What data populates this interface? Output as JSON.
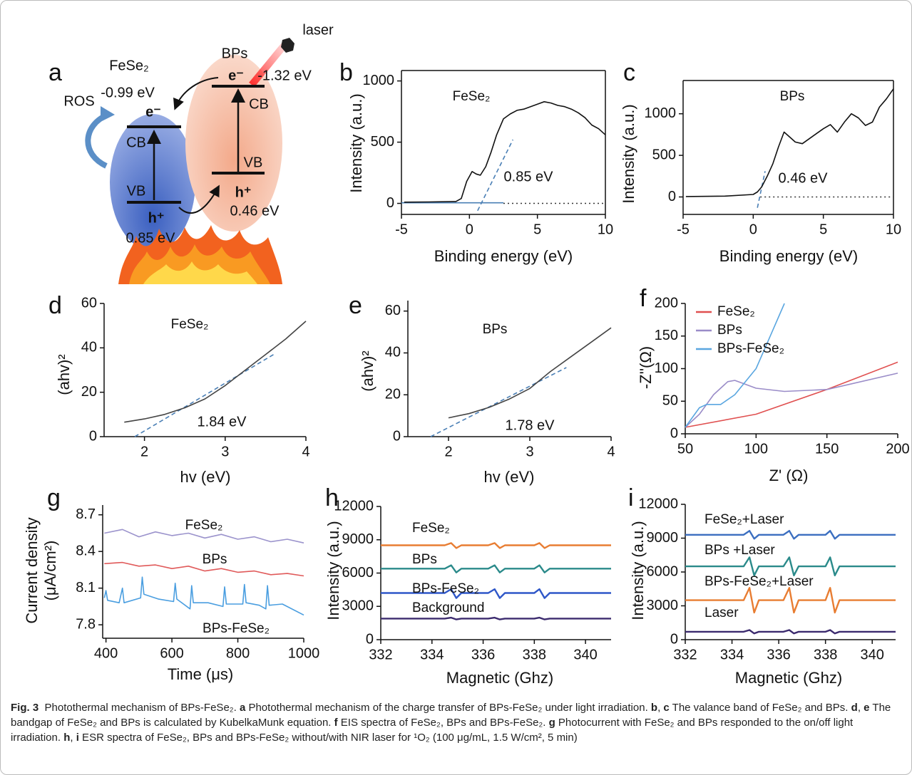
{
  "diagram": {
    "panel": "a",
    "fese2": "FeSe₂",
    "bps": "BPs",
    "laser": "laser",
    "ros": "ROS",
    "fese2_cb_energy": "-0.99 eV",
    "bps_cb_energy": "-1.32 eV",
    "fese2_e": "e⁻",
    "bps_e": "e⁻",
    "fese2_cb": "CB",
    "bps_cb": "CB",
    "fese2_vb": "VB",
    "bps_vb": "VB",
    "fese2_h": "h⁺",
    "bps_h": "h⁺",
    "bps_vb_energy": "0.46 eV",
    "fese2_vb_energy": "0.85 eV"
  },
  "chart_data": [
    {
      "type": "line",
      "panel": "b",
      "xlabel": "Binding energy (eV)",
      "ylabel": "Intensity (a.u.)",
      "xlim": [
        -5,
        10
      ],
      "ylim": [
        -90,
        1085
      ],
      "xticks": [
        -5,
        0,
        5,
        10
      ],
      "yticks": [
        0,
        500,
        1000
      ],
      "box": true,
      "series": [
        {
          "name": "FeSe₂",
          "color": "#111111",
          "x": [
            -4.8,
            -3,
            -1,
            -0.6,
            -0.2,
            0.2,
            0.5,
            0.8,
            1.2,
            1.6,
            2,
            2.5,
            3,
            3.5,
            4,
            4.5,
            5,
            5.5,
            6,
            6.5,
            7,
            7.5,
            8,
            8.5,
            9,
            9.5,
            10
          ],
          "values": [
            10,
            12,
            15,
            40,
            180,
            260,
            240,
            230,
            300,
            420,
            560,
            690,
            730,
            760,
            770,
            790,
            810,
            830,
            820,
            800,
            790,
            770,
            740,
            700,
            640,
            610,
            560
          ]
        }
      ],
      "fits": [
        {
          "style": "dashed",
          "color": "#4a7fb5",
          "x": [
            0.6,
            3.2
          ],
          "values": [
            -60,
            520
          ]
        },
        {
          "style": "solid",
          "color": "#4a7fb5",
          "x": [
            -5,
            2.5
          ],
          "values": [
            5,
            5
          ]
        },
        {
          "style": "dotted",
          "color": "#333333",
          "x": [
            2.5,
            10
          ],
          "values": [
            0,
            0
          ]
        }
      ],
      "annotations": [
        "0.85 eV"
      ]
    },
    {
      "type": "line",
      "panel": "c",
      "xlabel": "Binding energy (eV)",
      "ylabel": "Intensity (a.u.)",
      "xlim": [
        -5,
        10
      ],
      "ylim": [
        -210,
        1400
      ],
      "xticks": [
        -5,
        0,
        5,
        10
      ],
      "yticks": [
        0,
        500,
        1000
      ],
      "box": true,
      "series": [
        {
          "name": "BPs",
          "color": "#111111",
          "x": [
            -4.8,
            -2,
            0,
            0.3,
            0.6,
            1,
            1.4,
            1.8,
            2.2,
            2.6,
            3,
            3.5,
            4,
            4.5,
            5,
            5.5,
            6,
            6.5,
            7,
            7.5,
            8,
            8.5,
            9,
            9.5,
            10
          ],
          "values": [
            5,
            10,
            30,
            60,
            120,
            250,
            400,
            600,
            780,
            720,
            660,
            640,
            700,
            760,
            820,
            870,
            780,
            900,
            1000,
            950,
            860,
            900,
            1080,
            1180,
            1300
          ]
        }
      ],
      "fits": [
        {
          "style": "dashed",
          "color": "#4a7fb5",
          "x": [
            0.3,
            0.85
          ],
          "values": [
            -130,
            310
          ]
        },
        {
          "style": "dotted",
          "color": "#333333",
          "x": [
            0.5,
            10
          ],
          "values": [
            0,
            0
          ]
        }
      ],
      "annotations": [
        "0.46 eV"
      ]
    },
    {
      "type": "line",
      "panel": "d",
      "xlabel": "hv (eV)",
      "ylabel": "(ahv)²",
      "xlim": [
        1.5,
        4
      ],
      "ylim": [
        0,
        60
      ],
      "xticks": [
        2,
        3,
        4
      ],
      "yticks": [
        0,
        20,
        40,
        60
      ],
      "box": false,
      "series": [
        {
          "name": "FeSe₂",
          "color": "#444444",
          "x": [
            1.75,
            2,
            2.25,
            2.5,
            2.75,
            3,
            3.25,
            3.5,
            3.75,
            4
          ],
          "values": [
            6.5,
            8,
            10,
            13,
            17,
            23,
            30,
            37,
            44,
            52
          ]
        }
      ],
      "fits": [
        {
          "style": "dashed",
          "color": "#4a7fb5",
          "x": [
            1.88,
            3.6
          ],
          "values": [
            0,
            37
          ]
        }
      ],
      "annotations": [
        "1.84 eV"
      ]
    },
    {
      "type": "line",
      "panel": "e",
      "xlabel": "hv (eV)",
      "ylabel": "(ahv)²",
      "xlim": [
        1.5,
        4
      ],
      "ylim": [
        0,
        65
      ],
      "xticks": [
        2,
        3,
        4
      ],
      "yticks": [
        0,
        20,
        40,
        60
      ],
      "box": false,
      "series": [
        {
          "name": "BPs",
          "color": "#444444",
          "x": [
            2,
            2.25,
            2.5,
            2.75,
            3,
            3.25,
            3.5,
            3.75,
            4
          ],
          "values": [
            9,
            11,
            14,
            18,
            23,
            31,
            38,
            45,
            52
          ]
        }
      ],
      "fits": [
        {
          "style": "dashed",
          "color": "#4a7fb5",
          "x": [
            1.78,
            3.45
          ],
          "values": [
            0,
            33
          ]
        }
      ],
      "annotations": [
        "1.78 eV"
      ]
    },
    {
      "type": "line",
      "panel": "f",
      "xlabel": "Z' (Ω)",
      "ylabel": "-Z''(Ω)",
      "xlim": [
        50,
        200
      ],
      "ylim": [
        0,
        200
      ],
      "xticks": [
        50,
        100,
        150,
        200
      ],
      "yticks": [
        0,
        50,
        100,
        150,
        200
      ],
      "box": false,
      "legend": "upper left",
      "series": [
        {
          "name": "FeSe₂",
          "color": "#e05050",
          "x": [
            50,
            100,
            150,
            200
          ],
          "values": [
            10,
            30,
            68,
            110
          ]
        },
        {
          "name": "BPs",
          "color": "#9a8cc8",
          "x": [
            50,
            60,
            70,
            80,
            85,
            100,
            120,
            150,
            200
          ],
          "values": [
            10,
            30,
            60,
            80,
            82,
            70,
            65,
            68,
            93
          ]
        },
        {
          "name": "BPs-FeSe₂",
          "color": "#5aa6e0",
          "x": [
            50,
            60,
            65,
            75,
            85,
            100,
            110,
            120
          ],
          "values": [
            10,
            40,
            45,
            45,
            60,
            100,
            150,
            200
          ]
        }
      ]
    },
    {
      "type": "line",
      "panel": "g",
      "xlabel": "Time (μs)",
      "ylabel": [
        "Current density",
        "(μA/cm²)"
      ],
      "xlim": [
        390,
        1000
      ],
      "ylim": [
        7.69,
        8.78
      ],
      "xticks": [
        400,
        600,
        800,
        1000
      ],
      "yticks": [
        7.8,
        8.1,
        8.4,
        8.7
      ],
      "box": false,
      "series": [
        {
          "name": "FeSe₂",
          "color": "#9b93cc",
          "x": [
            395,
            450,
            500,
            550,
            600,
            650,
            700,
            750,
            800,
            850,
            900,
            950,
            1000
          ],
          "values": [
            8.55,
            8.58,
            8.52,
            8.56,
            8.53,
            8.55,
            8.51,
            8.54,
            8.5,
            8.52,
            8.48,
            8.5,
            8.47
          ]
        },
        {
          "name": "BPs",
          "color": "#e05a5a",
          "x": [
            395,
            450,
            500,
            550,
            600,
            650,
            700,
            750,
            800,
            850,
            900,
            950,
            1000
          ],
          "values": [
            8.3,
            8.31,
            8.28,
            8.29,
            8.26,
            8.28,
            8.24,
            8.26,
            8.23,
            8.24,
            8.21,
            8.22,
            8.2
          ]
        },
        {
          "name": "BPs-FeSe₂",
          "color": "#4a9ee0",
          "x": [
            395,
            400,
            405,
            440,
            450,
            455,
            505,
            510,
            515,
            560,
            605,
            610,
            615,
            655,
            660,
            665,
            710,
            755,
            760,
            765,
            815,
            820,
            825,
            865,
            885,
            890,
            895,
            935,
            1000
          ],
          "values": [
            8.02,
            8.08,
            8.0,
            7.98,
            8.1,
            7.98,
            8.02,
            8.19,
            8.05,
            8.01,
            7.99,
            8.14,
            8.01,
            7.93,
            8.12,
            7.98,
            7.98,
            7.95,
            8.11,
            7.97,
            7.97,
            8.13,
            7.98,
            7.96,
            7.93,
            8.12,
            7.96,
            7.97,
            7.88
          ]
        }
      ]
    },
    {
      "type": "line",
      "panel": "h",
      "xlabel": "Magnetic (Ghz)",
      "ylabel": "Intensity (a.u.)",
      "xlim": [
        332,
        341
      ],
      "ylim": [
        0,
        12000
      ],
      "xticks": [
        332,
        334,
        336,
        338,
        340
      ],
      "yticks": [
        0,
        3000,
        6000,
        9000,
        12000
      ],
      "box": false,
      "x": [
        332,
        334.5,
        334.75,
        334.95,
        335.15,
        336.2,
        336.45,
        336.65,
        336.85,
        338.0,
        338.2,
        338.4,
        338.6,
        341
      ],
      "series": [
        {
          "name": "FeSe₂",
          "color": "#e87d32",
          "values": [
            8500,
            8500,
            8700,
            8250,
            8500,
            8500,
            8700,
            8250,
            8500,
            8500,
            8700,
            8250,
            8500,
            8500
          ]
        },
        {
          "name": "BPs",
          "color": "#2a8a8a",
          "values": [
            6400,
            6400,
            6700,
            6050,
            6400,
            6400,
            6700,
            6050,
            6400,
            6400,
            6700,
            6050,
            6400,
            6400
          ]
        },
        {
          "name": "BPs-FeSe₂",
          "color": "#2f57c8",
          "values": [
            4200,
            4200,
            4550,
            3750,
            4200,
            4200,
            4550,
            3750,
            4200,
            4200,
            4550,
            3750,
            4200,
            4200
          ]
        },
        {
          "name": "Background",
          "color": "#3b2a6e",
          "values": [
            1900,
            1900,
            1980,
            1820,
            1900,
            1900,
            1980,
            1820,
            1900,
            1900,
            1980,
            1820,
            1900,
            1900
          ]
        }
      ]
    },
    {
      "type": "line",
      "panel": "i",
      "xlabel": "Magnetic (Ghz)",
      "ylabel": "Intensity (a.u.)",
      "xlim": [
        332,
        341
      ],
      "ylim": [
        0,
        12000
      ],
      "xticks": [
        332,
        334,
        336,
        338,
        340
      ],
      "yticks": [
        0,
        3000,
        6000,
        9000,
        12000
      ],
      "box": false,
      "x": [
        332,
        334.5,
        334.75,
        334.95,
        335.15,
        336.2,
        336.45,
        336.65,
        336.85,
        338.0,
        338.2,
        338.4,
        338.6,
        341
      ],
      "series": [
        {
          "name": "FeSe₂+Laser",
          "color": "#3c6fc0",
          "values": [
            9300,
            9300,
            9650,
            8950,
            9300,
            9300,
            9650,
            8950,
            9300,
            9300,
            9650,
            8950,
            9300,
            9300
          ]
        },
        {
          "name": "BPs +Laser",
          "color": "#2a8a8a",
          "values": [
            6500,
            6500,
            7300,
            5700,
            6500,
            6500,
            7300,
            5700,
            6500,
            6500,
            7300,
            5700,
            6500,
            6500
          ]
        },
        {
          "name": "BPs-FeSe₂+Laser",
          "color": "#e87d32",
          "values": [
            3500,
            3500,
            4600,
            2400,
            3500,
            3500,
            4600,
            2400,
            3500,
            3500,
            4600,
            2400,
            3500,
            3500
          ]
        },
        {
          "name": "Laser",
          "color": "#3b2a6e",
          "values": [
            700,
            700,
            850,
            550,
            700,
            700,
            850,
            550,
            700,
            700,
            850,
            550,
            700,
            700
          ]
        }
      ]
    }
  ],
  "caption": {
    "parts": [
      {
        "text": "Fig. 3",
        "bold": true
      },
      {
        "text": "  Photothermal mechanism of BPs-FeSe₂. "
      },
      {
        "text": "a",
        "bold": true
      },
      {
        "text": " Photothermal mechanism of the charge transfer of BPs-FeSe₂ under light irradiation. "
      },
      {
        "text": "b",
        "bold": true
      },
      {
        "text": ", "
      },
      {
        "text": "c",
        "bold": true
      },
      {
        "text": " The valance band of FeSe₂ and BPs. "
      },
      {
        "text": "d",
        "bold": true
      },
      {
        "text": ", "
      },
      {
        "text": "e",
        "bold": true
      },
      {
        "text": " The bandgap of FeSe₂ and BPs is calculated by KubelkaMunk equation. "
      },
      {
        "text": "f",
        "bold": true
      },
      {
        "text": " EIS spectra of FeSe₂, BPs and BPs-FeSe₂. "
      },
      {
        "text": "g",
        "bold": true
      },
      {
        "text": " Photocurrent with FeSe₂ and BPs responded to the on/off light irradiation. "
      },
      {
        "text": "h",
        "bold": true
      },
      {
        "text": ", "
      },
      {
        "text": "i",
        "bold": true
      },
      {
        "text": " ESR spectra of FeSe₂, BPs and BPs-FeSe₂ without/with NIR laser for ¹O₂ (100 μg/mL, 1.5 W/cm², 5 min)"
      }
    ]
  }
}
